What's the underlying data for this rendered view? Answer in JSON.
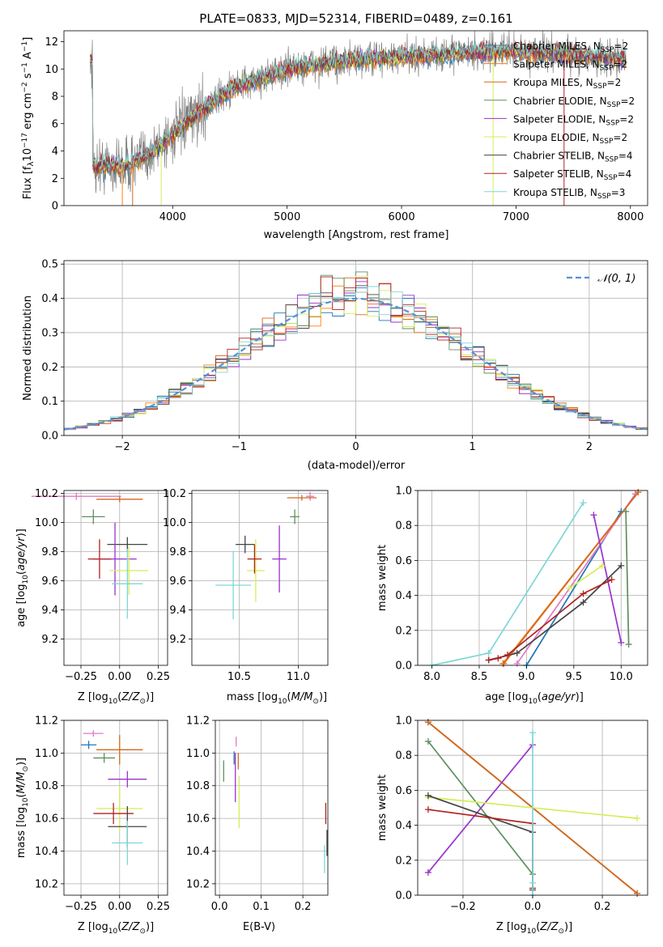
{
  "chart_data": [
    {
      "id": "spectrum",
      "type": "line",
      "title": "PLATE=0833, MJD=52314, FIBERID=0489, z=0.161",
      "xlabel": "wavelength [Angstrom, rest frame]",
      "ylabel": "Flux [f_λ10⁻¹⁷ erg cm⁻² s⁻¹ A⁻¹]",
      "xlim": [
        3050,
        8150
      ],
      "ylim": [
        0,
        12.8
      ],
      "xticks": [
        4000,
        5000,
        6000,
        7000,
        8000
      ],
      "yticks": [
        0,
        2,
        4,
        6,
        8,
        10,
        12
      ],
      "grid": false,
      "legend_position": "bottom-right",
      "legend": [
        {
          "label": "Chabrier MILES, N",
          "sub": "SSP",
          "tail": "=2",
          "color": "#1f77b4"
        },
        {
          "label": "Salpeter MILES, N",
          "sub": "SSP",
          "tail": "=2",
          "color": "#ff7f0e"
        },
        {
          "label": "Kroupa MILES, N",
          "sub": "SSP",
          "tail": "=2",
          "color": "#d2691e"
        },
        {
          "label": "Chabrier ELODIE, N",
          "sub": "SSP",
          "tail": "=2",
          "color": "#5f8f5f"
        },
        {
          "label": "Salpeter ELODIE, N",
          "sub": "SSP",
          "tail": "=2",
          "color": "#9932cc"
        },
        {
          "label": "Kroupa ELODIE, N",
          "sub": "SSP",
          "tail": "=2",
          "color": "#d4ed5a"
        },
        {
          "label": "Chabrier STELIB, N",
          "sub": "SSP",
          "tail": "=4",
          "color": "#444444"
        },
        {
          "label": "Salpeter STELIB, N",
          "sub": "SSP",
          "tail": "=4",
          "color": "#b22222"
        },
        {
          "label": "Kroupa STELIB, N",
          "sub": "SSP",
          "tail": "=3",
          "color": "#7fd6d6"
        }
      ],
      "data_color": "#808080",
      "x_range_data": [
        3280,
        7960
      ],
      "continuum": [
        [
          3300,
          2.9
        ],
        [
          3600,
          2.9
        ],
        [
          3800,
          3.8
        ],
        [
          4000,
          5.2
        ],
        [
          4300,
          7.3
        ],
        [
          4500,
          8.5
        ],
        [
          4800,
          9.4
        ],
        [
          5000,
          10.0
        ],
        [
          5400,
          10.5
        ],
        [
          5800,
          10.8
        ],
        [
          6200,
          11.0
        ],
        [
          6600,
          11.2
        ],
        [
          7000,
          11.3
        ],
        [
          7600,
          11.0
        ],
        [
          7950,
          10.7
        ]
      ]
    },
    {
      "id": "residuals",
      "type": "histogram",
      "xlabel": "(data-model)/error",
      "ylabel": "Normed distribution",
      "xlim": [
        -2.5,
        2.5
      ],
      "ylim": [
        0,
        0.51
      ],
      "xticks": [
        -2,
        -1,
        0,
        1,
        2
      ],
      "yticks": [
        0.0,
        0.1,
        0.2,
        0.3,
        0.4,
        0.5
      ],
      "grid": true,
      "legend_position": "top-right",
      "legend": [
        {
          "label": "𝒩(0, 1)",
          "color": "#5b8fd6",
          "style": "dashed"
        }
      ],
      "bin_width": 0.1,
      "peak_bins": {
        "0.1": 0.49,
        "0.2": 0.46,
        "-0.3": 0.46,
        "0.0": 0.45
      }
    },
    {
      "id": "age_vs_Z",
      "type": "errorbar",
      "xlabel": "Z [log₁₀(Z/Z☉)]",
      "ylabel": "age  [log₁₀(age/yr)]",
      "xlim": [
        -0.36,
        0.31
      ],
      "ylim": [
        9.02,
        10.22
      ],
      "xticks": [
        -0.25,
        0.0,
        0.25
      ],
      "xticklabels": [
        "−0.25",
        "0.00",
        "0.25"
      ],
      "yticks": [
        9.2,
        9.4,
        9.6,
        9.8,
        10.0,
        10.2
      ],
      "grid": true,
      "points": [
        {
          "x": -0.28,
          "xerr": 0.58,
          "y": 10.18,
          "yerr": 0.05,
          "color": "#e377c2"
        },
        {
          "x": 0.0,
          "xerr": 0.3,
          "y": 10.16,
          "yerr": 0.04,
          "color": "#d2691e"
        },
        {
          "x": -0.17,
          "xerr": 0.15,
          "y": 10.04,
          "yerr": 0.1,
          "color": "#5f8f5f"
        },
        {
          "x": 0.05,
          "xerr": 0.26,
          "y": 9.85,
          "yerr": 0.1,
          "color": "#444444"
        },
        {
          "x": -0.03,
          "xerr": 0.28,
          "y": 9.75,
          "yerr": 0.5,
          "color": "#9932cc"
        },
        {
          "x": 0.06,
          "xerr": 0.25,
          "y": 9.67,
          "yerr": 0.33,
          "color": "#d4ed5a"
        },
        {
          "x": -0.13,
          "xerr": 0.15,
          "y": 9.75,
          "yerr": 0.27,
          "color": "#b22222"
        },
        {
          "x": 0.05,
          "xerr": 0.2,
          "y": 9.58,
          "yerr": 0.48,
          "color": "#7fd6d6"
        }
      ]
    },
    {
      "id": "age_vs_mass",
      "type": "errorbar",
      "xlabel": "mass [log₁₀(M/M☉)]",
      "xlim": [
        10.1,
        11.25
      ],
      "ylim": [
        9.02,
        10.22
      ],
      "xticks": [
        10.5,
        11.0
      ],
      "xticklabels": [
        "10.5",
        "11.0"
      ],
      "yticks": [
        9.2,
        9.4,
        9.6,
        9.8,
        10.0,
        10.2
      ],
      "grid": true,
      "points": [
        {
          "x": 11.1,
          "xerr": 0.07,
          "y": 10.18,
          "yerr": 0.06,
          "color": "#e377c2"
        },
        {
          "x": 11.03,
          "xerr": 0.25,
          "y": 10.17,
          "yerr": 0.04,
          "color": "#d2691e"
        },
        {
          "x": 10.97,
          "xerr": 0.08,
          "y": 10.04,
          "yerr": 0.1,
          "color": "#5f8f5f"
        },
        {
          "x": 10.55,
          "xerr": 0.16,
          "y": 9.85,
          "yerr": 0.12,
          "color": "#444444"
        },
        {
          "x": 10.84,
          "xerr": 0.12,
          "y": 9.75,
          "yerr": 0.46,
          "color": "#9932cc"
        },
        {
          "x": 10.64,
          "xerr": 0.15,
          "y": 9.67,
          "yerr": 0.43,
          "color": "#d4ed5a"
        },
        {
          "x": 10.63,
          "xerr": 0.12,
          "y": 9.75,
          "yerr": 0.2,
          "color": "#b22222"
        },
        {
          "x": 10.45,
          "xerr": 0.3,
          "y": 9.57,
          "yerr": 0.47,
          "color": "#7fd6d6"
        }
      ]
    },
    {
      "id": "weight_vs_age",
      "type": "line",
      "xlabel": "age  [log₁₀(age/yr)]",
      "ylabel": "mass weight",
      "xlim": [
        7.85,
        10.28
      ],
      "ylim": [
        0,
        1
      ],
      "xticks": [
        8.0,
        8.5,
        9.0,
        9.5,
        10.0
      ],
      "xticklabels": [
        "8.0",
        "8.5",
        "9.0",
        "9.5",
        "10.0"
      ],
      "yticks": [
        0.0,
        0.2,
        0.4,
        0.6,
        0.8,
        1.0
      ],
      "grid": true,
      "series": [
        {
          "color": "#1f77b4",
          "points": [
            [
              9.0,
              0.0
            ],
            [
              10.0,
              0.88
            ]
          ]
        },
        {
          "color": "#ff7f0e",
          "points": [
            [
              8.75,
              0.01
            ],
            [
              10.18,
              0.99
            ]
          ]
        },
        {
          "color": "#e377c2",
          "points": [
            [
              8.9,
              0.01
            ],
            [
              10.15,
              0.98
            ]
          ]
        },
        {
          "color": "#d2691e",
          "points": [
            [
              8.76,
              0.01
            ],
            [
              10.18,
              0.99
            ]
          ]
        },
        {
          "color": "#5f8f5f",
          "points": [
            [
              10.05,
              0.88
            ],
            [
              10.08,
              0.12
            ]
          ]
        },
        {
          "color": "#9932cc",
          "points": [
            [
              9.71,
              0.86
            ],
            [
              10.0,
              0.13
            ]
          ]
        },
        {
          "color": "#d4ed5a",
          "points": [
            [
              9.45,
              0.44
            ],
            [
              9.8,
              0.57
            ]
          ]
        },
        {
          "color": "#444444",
          "points": [
            [
              8.6,
              0.03
            ],
            [
              8.9,
              0.07
            ],
            [
              9.6,
              0.36
            ],
            [
              10.0,
              0.57
            ]
          ]
        },
        {
          "color": "#b22222",
          "points": [
            [
              8.6,
              0.03
            ],
            [
              8.7,
              0.04
            ],
            [
              8.8,
              0.06
            ],
            [
              9.6,
              0.41
            ],
            [
              9.9,
              0.49
            ]
          ]
        },
        {
          "color": "#7fd6d6",
          "points": [
            [
              8.0,
              0.0
            ],
            [
              8.6,
              0.07
            ],
            [
              9.6,
              0.93
            ]
          ]
        }
      ]
    },
    {
      "id": "mass_vs_Z",
      "type": "errorbar",
      "xlabel": "Z [log₁₀(Z/Z☉)]",
      "ylabel": "mass [log₁₀(M/M☉)]",
      "xlim": [
        -0.36,
        0.31
      ],
      "ylim": [
        10.13,
        11.2
      ],
      "xticks": [
        -0.25,
        0.0,
        0.25
      ],
      "xticklabels": [
        "−0.25",
        "0.00",
        "0.25"
      ],
      "yticks": [
        10.2,
        10.4,
        10.6,
        10.8,
        11.0,
        11.2
      ],
      "grid": true,
      "points": [
        {
          "x": -0.17,
          "xerr": 0.13,
          "y": 11.12,
          "yerr": 0.04,
          "color": "#e377c2"
        },
        {
          "x": -0.2,
          "xerr": 0.1,
          "y": 11.05,
          "yerr": 0.05,
          "color": "#1f77b4"
        },
        {
          "x": 0.0,
          "xerr": 0.3,
          "y": 11.02,
          "yerr": 0.18,
          "color": "#d2691e"
        },
        {
          "x": -0.1,
          "xerr": 0.14,
          "y": 10.97,
          "yerr": 0.06,
          "color": "#5f8f5f"
        },
        {
          "x": 0.05,
          "xerr": 0.25,
          "y": 10.84,
          "yerr": 0.1,
          "color": "#9932cc"
        },
        {
          "x": 0.0,
          "xerr": 0.3,
          "y": 10.66,
          "yerr": 0.28,
          "color": "#d4ed5a"
        },
        {
          "x": -0.04,
          "xerr": 0.26,
          "y": 10.63,
          "yerr": 0.13,
          "color": "#b22222"
        },
        {
          "x": 0.05,
          "xerr": 0.25,
          "y": 10.55,
          "yerr": 0.25,
          "color": "#444444"
        },
        {
          "x": 0.05,
          "xerr": 0.2,
          "y": 10.45,
          "yerr": 0.27,
          "color": "#7fd6d6"
        }
      ]
    },
    {
      "id": "mass_vs_ebv",
      "type": "errorbar",
      "xlabel": "E(B-V)",
      "xlim": [
        -0.01,
        0.26
      ],
      "ylim": [
        10.13,
        11.2
      ],
      "xticks": [
        0.0,
        0.1,
        0.2
      ],
      "xticklabels": [
        "0.0",
        "0.1",
        "0.2"
      ],
      "yticks": [
        10.2,
        10.4,
        10.6,
        10.8,
        11.0,
        11.2
      ],
      "grid": true,
      "points": [
        {
          "x": 0.04,
          "xerr": 0.0,
          "y": 11.07,
          "yerr": 0.06,
          "color": "#e377c2"
        },
        {
          "x": 0.035,
          "xerr": 0.0,
          "y": 10.97,
          "yerr": 0.08,
          "color": "#1f77b4"
        },
        {
          "x": 0.045,
          "xerr": 0.0,
          "y": 10.95,
          "yerr": 0.1,
          "color": "#d2691e"
        },
        {
          "x": 0.01,
          "xerr": 0.0,
          "y": 10.89,
          "yerr": 0.13,
          "color": "#5f8f5f"
        },
        {
          "x": 0.038,
          "xerr": 0.0,
          "y": 10.85,
          "yerr": 0.3,
          "color": "#9932cc"
        },
        {
          "x": 0.047,
          "xerr": 0.0,
          "y": 10.7,
          "yerr": 0.32,
          "color": "#d4ed5a"
        },
        {
          "x": 0.255,
          "xerr": 0.0,
          "y": 10.63,
          "yerr": 0.13,
          "color": "#b22222"
        },
        {
          "x": 0.258,
          "xerr": 0.0,
          "y": 10.45,
          "yerr": 0.16,
          "color": "#444444"
        },
        {
          "x": 0.252,
          "xerr": 0.0,
          "y": 10.35,
          "yerr": 0.17,
          "color": "#7fd6d6"
        }
      ]
    },
    {
      "id": "weight_vs_Z",
      "type": "line",
      "xlabel": "Z [log₁₀(Z/Z☉)]",
      "ylabel": "mass weight",
      "xlim": [
        -0.33,
        0.33
      ],
      "ylim": [
        0,
        1
      ],
      "xticks": [
        -0.2,
        0.0,
        0.2
      ],
      "xticklabels": [
        "−0.2",
        "0.0",
        "0.2"
      ],
      "yticks": [
        0.0,
        0.2,
        0.4,
        0.6,
        0.8,
        1.0
      ],
      "grid": true,
      "series": [
        {
          "color": "#1f77b4",
          "points": [
            [
              -0.3,
              0.99
            ],
            [
              0.3,
              0.01
            ]
          ]
        },
        {
          "color": "#ff7f0e",
          "points": [
            [
              -0.3,
              0.99
            ],
            [
              0.3,
              0.01
            ]
          ]
        },
        {
          "color": "#d2691e",
          "points": [
            [
              -0.3,
              0.99
            ],
            [
              0.3,
              0.01
            ]
          ]
        },
        {
          "color": "#5f8f5f",
          "points": [
            [
              -0.3,
              0.88
            ],
            [
              0.0,
              0.12
            ]
          ]
        },
        {
          "color": "#9932cc",
          "points": [
            [
              -0.3,
              0.13
            ],
            [
              0.0,
              0.86
            ]
          ]
        },
        {
          "color": "#d4ed5a",
          "points": [
            [
              -0.3,
              0.56
            ],
            [
              0.3,
              0.44
            ]
          ]
        },
        {
          "color": "#444444",
          "points": [
            [
              -0.3,
              0.57
            ],
            [
              0.0,
              0.36
            ],
            [
              0.0,
              0.03
            ]
          ]
        },
        {
          "color": "#b22222",
          "points": [
            [
              -0.3,
              0.49
            ],
            [
              0.0,
              0.41
            ],
            [
              0.0,
              0.04
            ]
          ]
        },
        {
          "color": "#7fd6d6",
          "points": [
            [
              0.0,
              0.93
            ],
            [
              0.0,
              0.07
            ],
            [
              0.0,
              0.0
            ]
          ]
        }
      ]
    }
  ]
}
